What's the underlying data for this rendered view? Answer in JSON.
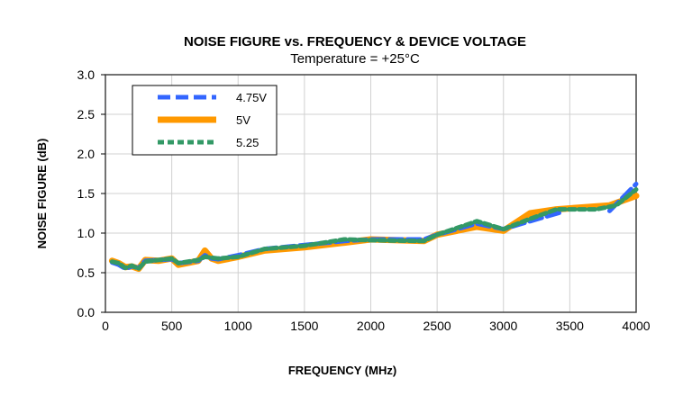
{
  "chart_data": {
    "type": "line",
    "title": "NOISE FIGURE vs. FREQUENCY & DEVICE VOLTAGE",
    "subtitle": "Temperature = +25°C",
    "xlabel": "FREQUENCY (MHz)",
    "ylabel": "NOISE FIGURE (dB)",
    "xlim": [
      0,
      4000
    ],
    "ylim": [
      0,
      3
    ],
    "xticks": [
      0,
      500,
      1000,
      1500,
      2000,
      2500,
      3000,
      3500,
      4000
    ],
    "yticks": [
      "0.0",
      "0.5",
      "1.0",
      "1.5",
      "2.0",
      "2.5",
      "3.0"
    ],
    "grid": true,
    "legend_position": "top-left",
    "series": [
      {
        "name": "4.75V",
        "color": "#3366ff",
        "style": "dashed",
        "x": [
          50,
          100,
          150,
          200,
          250,
          300,
          400,
          500,
          550,
          700,
          750,
          800,
          850,
          1000,
          1200,
          1500,
          1800,
          2000,
          2400,
          2500,
          2800,
          3000,
          3200,
          3450,
          3600,
          3800,
          4000
        ],
        "y": [
          0.63,
          0.6,
          0.55,
          0.58,
          0.56,
          0.65,
          0.66,
          0.67,
          0.62,
          0.65,
          0.72,
          0.68,
          0.67,
          0.72,
          0.8,
          0.85,
          0.9,
          0.92,
          0.92,
          0.98,
          1.12,
          1.05,
          1.15,
          1.27,
          null,
          1.28,
          1.62
        ]
      },
      {
        "name": "5V",
        "color": "#ff9900",
        "style": "solid",
        "x": [
          50,
          100,
          150,
          200,
          250,
          300,
          400,
          500,
          550,
          700,
          750,
          800,
          850,
          1000,
          1200,
          1500,
          1800,
          2000,
          2400,
          2500,
          2800,
          3000,
          3200,
          3400,
          3800,
          4000
        ],
        "y": [
          0.65,
          0.62,
          0.57,
          0.58,
          0.55,
          0.66,
          0.65,
          0.68,
          0.6,
          0.65,
          0.78,
          0.68,
          0.65,
          0.7,
          0.78,
          0.82,
          0.88,
          0.92,
          0.9,
          0.98,
          1.08,
          1.03,
          1.25,
          1.3,
          1.35,
          1.47
        ]
      },
      {
        "name": "5.25",
        "color": "#339966",
        "style": "dotted",
        "x": [
          50,
          100,
          150,
          200,
          250,
          300,
          400,
          500,
          550,
          700,
          750,
          800,
          850,
          1000,
          1200,
          1500,
          1800,
          2000,
          2400,
          2500,
          2800,
          3000,
          3200,
          3400,
          3700,
          3850,
          4000
        ],
        "y": [
          0.64,
          0.62,
          0.56,
          0.59,
          0.55,
          0.64,
          0.66,
          0.68,
          0.62,
          0.66,
          0.7,
          0.69,
          0.68,
          0.7,
          0.8,
          0.84,
          0.92,
          0.91,
          0.9,
          0.98,
          1.15,
          1.05,
          1.18,
          1.3,
          1.3,
          1.35,
          1.55
        ]
      }
    ]
  }
}
